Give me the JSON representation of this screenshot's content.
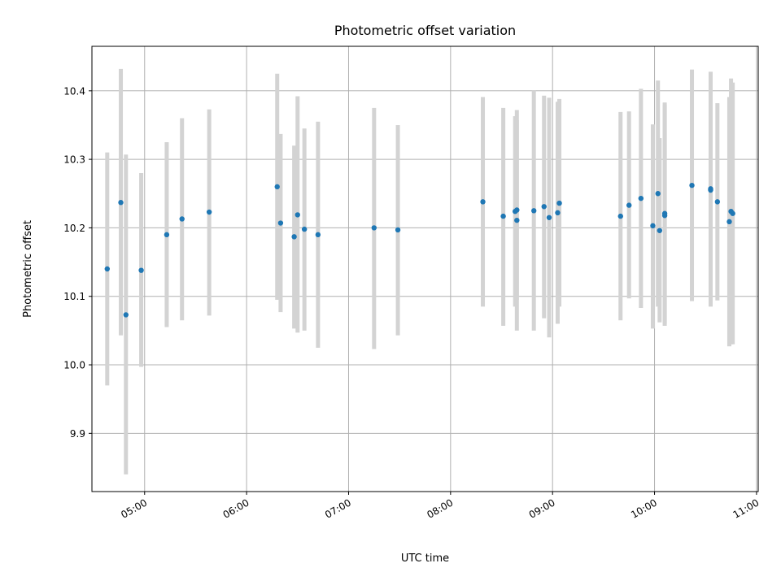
{
  "chart_data": {
    "type": "scatter",
    "title": "Photometric offset variation",
    "xlabel": "UTC time",
    "ylabel": "Photometric offset",
    "xlim": [
      "04:29",
      "11:01"
    ],
    "ylim": [
      9.815,
      10.465
    ],
    "x_ticks": [
      "05:00",
      "06:00",
      "07:00",
      "08:00",
      "09:00",
      "10:00",
      "11:00"
    ],
    "y_ticks": [
      9.9,
      10.0,
      10.1,
      10.2,
      10.3,
      10.4
    ],
    "y_tick_labels": [
      "9.9",
      "10.0",
      "10.1",
      "10.2",
      "10.3",
      "10.4"
    ],
    "grid": true,
    "colors": {
      "points": "#1f77b4",
      "error_bars": "#d3d3d3",
      "grid": "#b0b0b0"
    },
    "points": [
      {
        "x": "04:38",
        "y": 10.14,
        "ylo": 9.97,
        "yhi": 10.31
      },
      {
        "x": "04:46",
        "y": 10.237,
        "ylo": 10.043,
        "yhi": 10.432
      },
      {
        "x": "04:49",
        "y": 10.073,
        "ylo": 9.84,
        "yhi": 10.307
      },
      {
        "x": "04:58",
        "y": 10.138,
        "ylo": 9.997,
        "yhi": 10.28
      },
      {
        "x": "05:13",
        "y": 10.19,
        "ylo": 10.055,
        "yhi": 10.325
      },
      {
        "x": "05:22",
        "y": 10.213,
        "ylo": 10.065,
        "yhi": 10.36
      },
      {
        "x": "05:38",
        "y": 10.223,
        "ylo": 10.072,
        "yhi": 10.373
      },
      {
        "x": "06:18",
        "y": 10.26,
        "ylo": 10.095,
        "yhi": 10.425
      },
      {
        "x": "06:20",
        "y": 10.207,
        "ylo": 10.077,
        "yhi": 10.337
      },
      {
        "x": "06:28",
        "y": 10.187,
        "ylo": 10.053,
        "yhi": 10.32
      },
      {
        "x": "06:30",
        "y": 10.219,
        "ylo": 10.047,
        "yhi": 10.392
      },
      {
        "x": "06:34",
        "y": 10.198,
        "ylo": 10.05,
        "yhi": 10.345
      },
      {
        "x": "06:42",
        "y": 10.19,
        "ylo": 10.025,
        "yhi": 10.355
      },
      {
        "x": "07:15",
        "y": 10.2,
        "ylo": 10.023,
        "yhi": 10.375
      },
      {
        "x": "07:29",
        "y": 10.197,
        "ylo": 10.043,
        "yhi": 10.35
      },
      {
        "x": "08:19",
        "y": 10.238,
        "ylo": 10.085,
        "yhi": 10.391
      },
      {
        "x": "08:31",
        "y": 10.217,
        "ylo": 10.057,
        "yhi": 10.375
      },
      {
        "x": "08:38",
        "y": 10.224,
        "ylo": 10.085,
        "yhi": 10.363
      },
      {
        "x": "08:39",
        "y": 10.226,
        "ylo": 10.095,
        "yhi": 10.357
      },
      {
        "x": "08:39",
        "y": 10.211,
        "ylo": 10.05,
        "yhi": 10.372
      },
      {
        "x": "08:49",
        "y": 10.225,
        "ylo": 10.05,
        "yhi": 10.4
      },
      {
        "x": "08:55",
        "y": 10.231,
        "ylo": 10.068,
        "yhi": 10.393
      },
      {
        "x": "08:58",
        "y": 10.215,
        "ylo": 10.04,
        "yhi": 10.39
      },
      {
        "x": "09:03",
        "y": 10.222,
        "ylo": 10.06,
        "yhi": 10.384
      },
      {
        "x": "09:04",
        "y": 10.236,
        "ylo": 10.085,
        "yhi": 10.388
      },
      {
        "x": "09:40",
        "y": 10.217,
        "ylo": 10.065,
        "yhi": 10.369
      },
      {
        "x": "09:45",
        "y": 10.233,
        "ylo": 10.097,
        "yhi": 10.37
      },
      {
        "x": "09:52",
        "y": 10.243,
        "ylo": 10.083,
        "yhi": 10.403
      },
      {
        "x": "09:59",
        "y": 10.203,
        "ylo": 10.053,
        "yhi": 10.351
      },
      {
        "x": "10:02",
        "y": 10.25,
        "ylo": 10.085,
        "yhi": 10.415
      },
      {
        "x": "10:03",
        "y": 10.196,
        "ylo": 10.062,
        "yhi": 10.331
      },
      {
        "x": "10:06",
        "y": 10.221,
        "ylo": 10.06,
        "yhi": 10.383
      },
      {
        "x": "10:06",
        "y": 10.218,
        "ylo": 10.057,
        "yhi": 10.38
      },
      {
        "x": "10:22",
        "y": 10.262,
        "ylo": 10.093,
        "yhi": 10.431
      },
      {
        "x": "10:33",
        "y": 10.257,
        "ylo": 10.087,
        "yhi": 10.428
      },
      {
        "x": "10:33",
        "y": 10.255,
        "ylo": 10.085,
        "yhi": 10.425
      },
      {
        "x": "10:37",
        "y": 10.238,
        "ylo": 10.094,
        "yhi": 10.382
      },
      {
        "x": "10:44",
        "y": 10.209,
        "ylo": 10.027,
        "yhi": 10.391
      },
      {
        "x": "10:45",
        "y": 10.224,
        "ylo": 10.03,
        "yhi": 10.418
      },
      {
        "x": "10:46",
        "y": 10.221,
        "ylo": 10.03,
        "yhi": 10.412
      }
    ]
  }
}
